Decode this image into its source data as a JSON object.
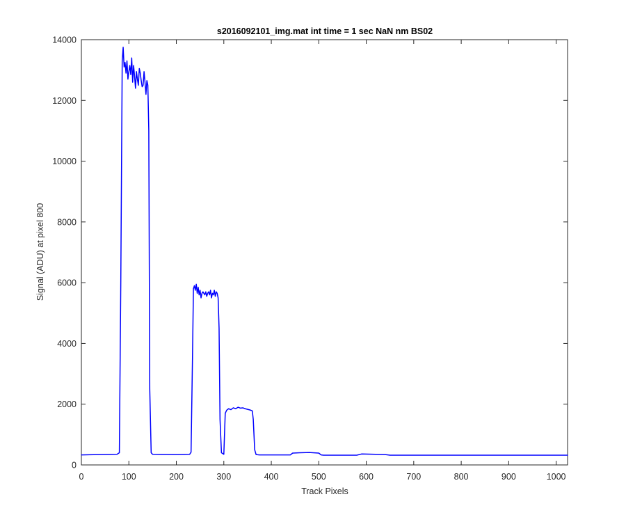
{
  "chart_data": {
    "type": "line",
    "title": "s2016092101_img.mat int time = 1 sec  NaN nm BS02",
    "xlabel": "Track Pixels",
    "ylabel": "Signal (ADU) at pixel 800",
    "xlim": [
      0,
      1024
    ],
    "ylim": [
      0,
      14000
    ],
    "xticks": [
      0,
      100,
      200,
      300,
      400,
      500,
      600,
      700,
      800,
      900,
      1000
    ],
    "yticks": [
      0,
      2000,
      4000,
      6000,
      8000,
      10000,
      12000,
      14000
    ],
    "grid": false,
    "legend": "none",
    "series": [
      {
        "color": "#0000ff",
        "x": [
          0,
          75,
          80,
          83,
          86,
          88,
          90,
          92,
          94,
          96,
          98,
          100,
          102,
          104,
          106,
          108,
          110,
          112,
          114,
          116,
          118,
          120,
          122,
          124,
          126,
          128,
          130,
          132,
          134,
          136,
          138,
          140,
          142,
          144,
          147,
          150,
          200,
          228,
          231,
          234,
          236,
          238,
          240,
          242,
          244,
          246,
          248,
          250,
          252,
          254,
          256,
          258,
          260,
          262,
          264,
          266,
          268,
          270,
          272,
          274,
          276,
          278,
          280,
          282,
          284,
          286,
          288,
          290,
          292,
          295,
          300,
          303,
          306,
          310,
          315,
          320,
          325,
          330,
          335,
          340,
          345,
          350,
          355,
          360,
          362,
          365,
          368,
          375,
          400,
          440,
          445,
          460,
          480,
          500,
          505,
          510,
          550,
          580,
          590,
          620,
          640,
          650,
          700,
          800,
          900,
          1024
        ],
        "y": [
          330,
          350,
          400,
          6000,
          13300,
          13750,
          13100,
          13250,
          12900,
          13300,
          12700,
          12950,
          13150,
          12850,
          13400,
          12600,
          13150,
          12800,
          12400,
          12950,
          12700,
          12500,
          13050,
          12900,
          12650,
          12450,
          12500,
          12950,
          12600,
          12200,
          12650,
          12500,
          11000,
          2500,
          400,
          350,
          340,
          350,
          420,
          3500,
          5800,
          5900,
          5750,
          5950,
          5650,
          5850,
          5600,
          5750,
          5500,
          5650,
          5700,
          5650,
          5600,
          5700,
          5550,
          5650,
          5700,
          5600,
          5750,
          5500,
          5650,
          5600,
          5750,
          5550,
          5700,
          5650,
          5500,
          4500,
          1500,
          400,
          350,
          1700,
          1800,
          1850,
          1820,
          1880,
          1850,
          1900,
          1870,
          1880,
          1850,
          1830,
          1810,
          1780,
          1500,
          500,
          340,
          330,
          330,
          330,
          390,
          400,
          410,
          390,
          330,
          320,
          320,
          320,
          360,
          350,
          340,
          320,
          320,
          320,
          320,
          320
        ]
      }
    ]
  }
}
